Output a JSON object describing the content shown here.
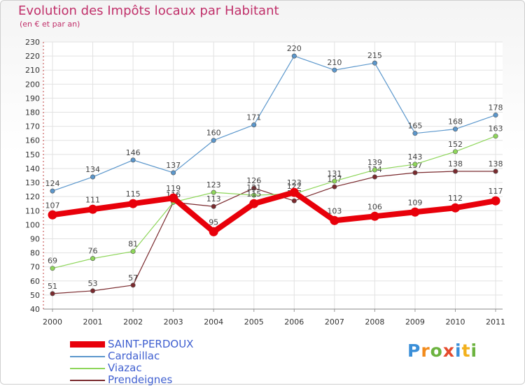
{
  "title": "Evolution des Impôts locaux par Habitant",
  "subtitle": "(en € et par an)",
  "brand": "Proxiti",
  "chart_data": {
    "type": "line",
    "title": "Evolution des Impôts locaux par Habitant",
    "subtitle": "(en € et par an)",
    "x": [
      "2000",
      "2001",
      "2002",
      "2003",
      "2004",
      "2005",
      "2006",
      "2007",
      "2008",
      "2009",
      "2010",
      "2011"
    ],
    "ylim": [
      40,
      230
    ],
    "ytick_step": 10,
    "grid": true,
    "legend_position": "bottom-left",
    "series": [
      {
        "name": "SAINT-PERDOUX",
        "color": "#e8000a",
        "values": [
          107,
          111,
          115,
          119,
          95,
          115,
          123,
          103,
          106,
          109,
          112,
          117
        ]
      },
      {
        "name": "Cardaillac",
        "color": "#5b97cc",
        "values": [
          124,
          134,
          146,
          137,
          160,
          171,
          220,
          210,
          215,
          165,
          168,
          178
        ]
      },
      {
        "name": "Viazac",
        "color": "#8ed65a",
        "values": [
          69,
          76,
          81,
          116,
          123,
          121,
          122,
          131,
          139,
          143,
          152,
          163
        ]
      },
      {
        "name": "Prendeignes",
        "color": "#7a2a2e",
        "values": [
          51,
          53,
          57,
          116,
          113,
          126,
          117,
          127,
          134,
          137,
          138,
          138
        ]
      }
    ]
  }
}
